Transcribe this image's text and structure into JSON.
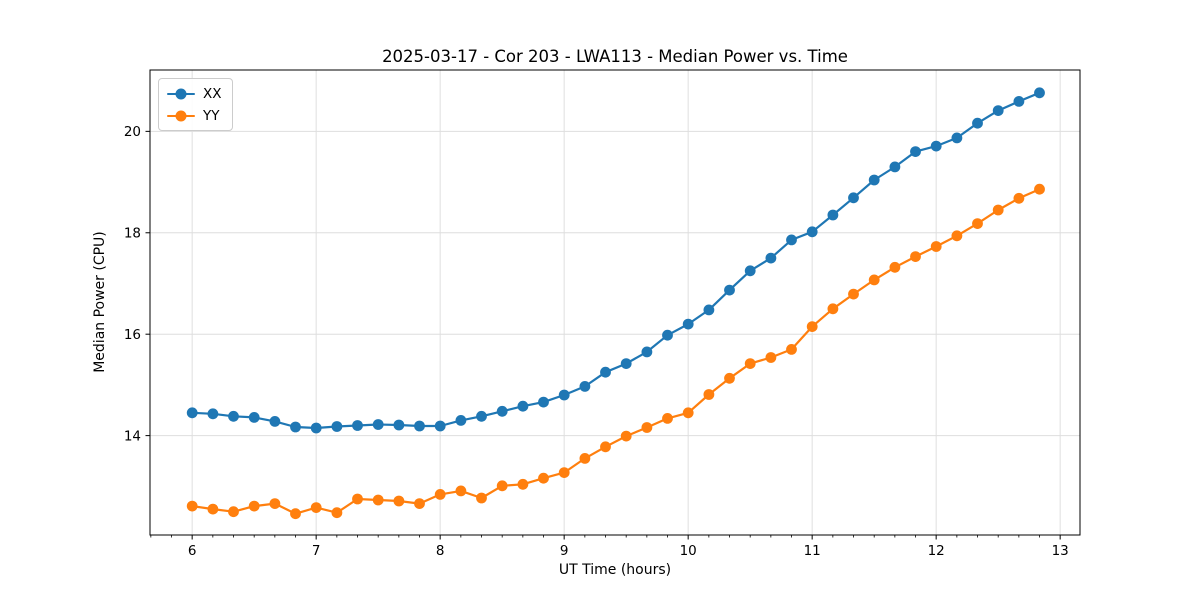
{
  "chart_data": {
    "type": "line",
    "title": "2025-03-17 - Cor 203 - LWA113 - Median Power vs. Time",
    "xlabel": "UT Time (hours)",
    "ylabel": "Median Power (CPU)",
    "xlim": [
      5.66,
      13.16
    ],
    "ylim": [
      12.04,
      21.21
    ],
    "x_ticks": [
      6,
      7,
      8,
      9,
      10,
      11,
      12,
      13
    ],
    "y_ticks": [
      14,
      16,
      18,
      20
    ],
    "x_minor_tick_step": 0.16667,
    "grid": true,
    "grid_color": "#dedede",
    "legend_position": "upper-left",
    "marker": "circle",
    "x": [
      6.0,
      6.167,
      6.333,
      6.5,
      6.667,
      6.833,
      7.0,
      7.167,
      7.333,
      7.5,
      7.667,
      7.833,
      8.0,
      8.167,
      8.333,
      8.5,
      8.667,
      8.833,
      9.0,
      9.167,
      9.333,
      9.5,
      9.667,
      9.833,
      10.0,
      10.167,
      10.333,
      10.5,
      10.667,
      10.833,
      11.0,
      11.167,
      11.333,
      11.5,
      11.667,
      11.833,
      12.0,
      12.167,
      12.333,
      12.5,
      12.667,
      12.833
    ],
    "series": [
      {
        "name": "XX",
        "color": "#1f77b4",
        "values": [
          14.45,
          14.43,
          14.38,
          14.36,
          14.28,
          14.17,
          14.15,
          14.18,
          14.2,
          14.22,
          14.21,
          14.19,
          14.19,
          14.3,
          14.38,
          14.48,
          14.58,
          14.66,
          14.8,
          14.97,
          15.25,
          15.42,
          15.65,
          15.98,
          16.2,
          16.48,
          16.87,
          17.25,
          17.5,
          17.86,
          18.02,
          18.35,
          18.69,
          19.04,
          19.3,
          19.6,
          19.71,
          19.87,
          20.16,
          20.41,
          20.59,
          20.76
        ]
      },
      {
        "name": "YY",
        "color": "#ff7f0e",
        "values": [
          12.61,
          12.55,
          12.5,
          12.61,
          12.66,
          12.46,
          12.58,
          12.48,
          12.75,
          12.73,
          12.71,
          12.66,
          12.84,
          12.91,
          12.77,
          13.01,
          13.04,
          13.16,
          13.27,
          13.55,
          13.78,
          13.99,
          14.16,
          14.34,
          14.45,
          14.81,
          15.13,
          15.42,
          15.54,
          15.7,
          16.15,
          16.5,
          16.79,
          17.07,
          17.32,
          17.53,
          17.73,
          17.94,
          18.18,
          18.45,
          18.68,
          18.86
        ]
      }
    ]
  }
}
